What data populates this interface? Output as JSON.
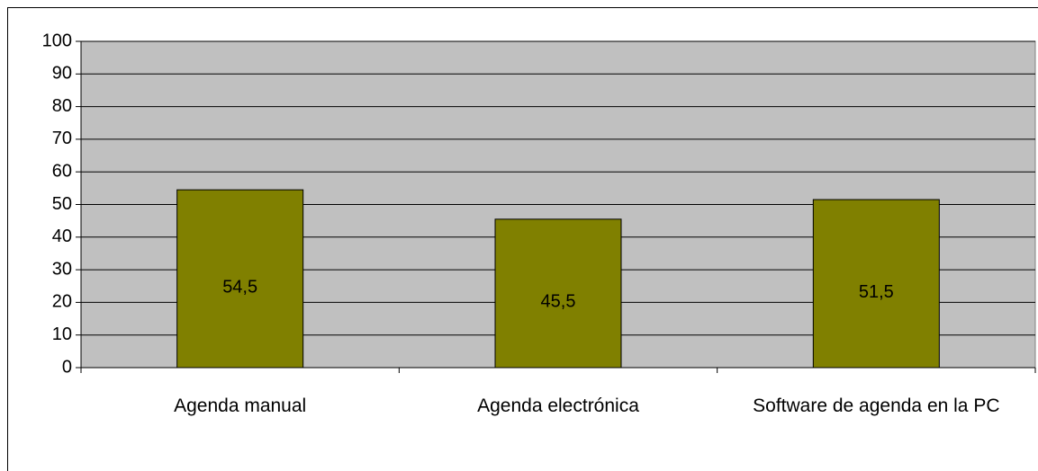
{
  "chart_data": {
    "type": "bar",
    "categories": [
      "Agenda manual",
      "Agenda electrónica",
      "Software de agenda en la PC"
    ],
    "values": [
      54.5,
      45.5,
      51.5
    ],
    "value_labels": [
      "54,5",
      "45,5",
      "51,5"
    ],
    "color": "#808000",
    "ylim": [
      0,
      100
    ],
    "yticks": [
      0,
      10,
      20,
      30,
      40,
      50,
      60,
      70,
      80,
      90,
      100
    ],
    "grid": true
  }
}
